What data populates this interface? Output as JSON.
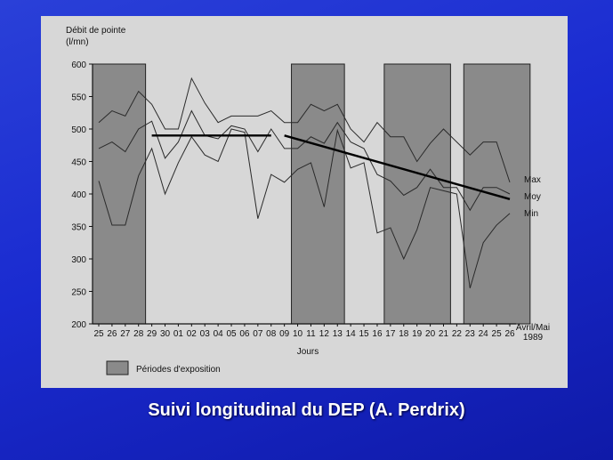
{
  "slide": {
    "caption": "Suivi longitudinal du DEP (A. Perdrix)"
  },
  "chart_data": {
    "type": "line",
    "ylabel": "Débit de pointe",
    "yunit": "(l/mn)",
    "xlabel": "Jours",
    "x_note_line1": "Avril/Mai",
    "x_note_line2": "1989",
    "ylim": [
      200,
      600
    ],
    "yticks": [
      200,
      250,
      300,
      350,
      400,
      450,
      500,
      550,
      600
    ],
    "categories": [
      "25",
      "26",
      "27",
      "28",
      "29",
      "30",
      "01",
      "02",
      "03",
      "04",
      "05",
      "06",
      "07",
      "08",
      "09",
      "10",
      "11",
      "12",
      "13",
      "14",
      "15",
      "16",
      "17",
      "18",
      "19",
      "20",
      "21",
      "22",
      "23",
      "24",
      "25",
      "26"
    ],
    "exposure_periods": [
      [
        0,
        4
      ],
      [
        15,
        19
      ],
      [
        22,
        27
      ],
      [
        28,
        33
      ]
    ],
    "legend": {
      "exposure": "Périodes d'exposition"
    },
    "series": [
      {
        "name": "Max",
        "values": [
          510,
          528,
          520,
          558,
          538,
          500,
          500,
          578,
          540,
          510,
          520,
          520,
          520,
          528,
          510,
          510,
          538,
          528,
          538,
          500,
          480,
          510,
          488,
          488,
          450,
          478,
          500,
          480,
          460,
          480,
          480,
          418
        ]
      },
      {
        "name": "Moy",
        "values": [
          470,
          480,
          465,
          500,
          512,
          455,
          480,
          528,
          490,
          485,
          505,
          500,
          465,
          500,
          470,
          470,
          488,
          478,
          510,
          480,
          470,
          430,
          420,
          398,
          410,
          438,
          410,
          410,
          375,
          410,
          410,
          400
        ]
      },
      {
        "name": "Min",
        "values": [
          420,
          352,
          352,
          428,
          470,
          400,
          448,
          488,
          460,
          450,
          500,
          495,
          362,
          430,
          418,
          438,
          448,
          380,
          498,
          440,
          448,
          340,
          348,
          300,
          345,
          410,
          405,
          400,
          255,
          325,
          352,
          370
        ]
      }
    ],
    "trend_lines": [
      {
        "from_index": 4,
        "to_index": 13,
        "y_start": 490,
        "y_end": 490
      },
      {
        "from_index": 14,
        "to_index": 31,
        "y_start": 490,
        "y_end": 392
      }
    ]
  }
}
